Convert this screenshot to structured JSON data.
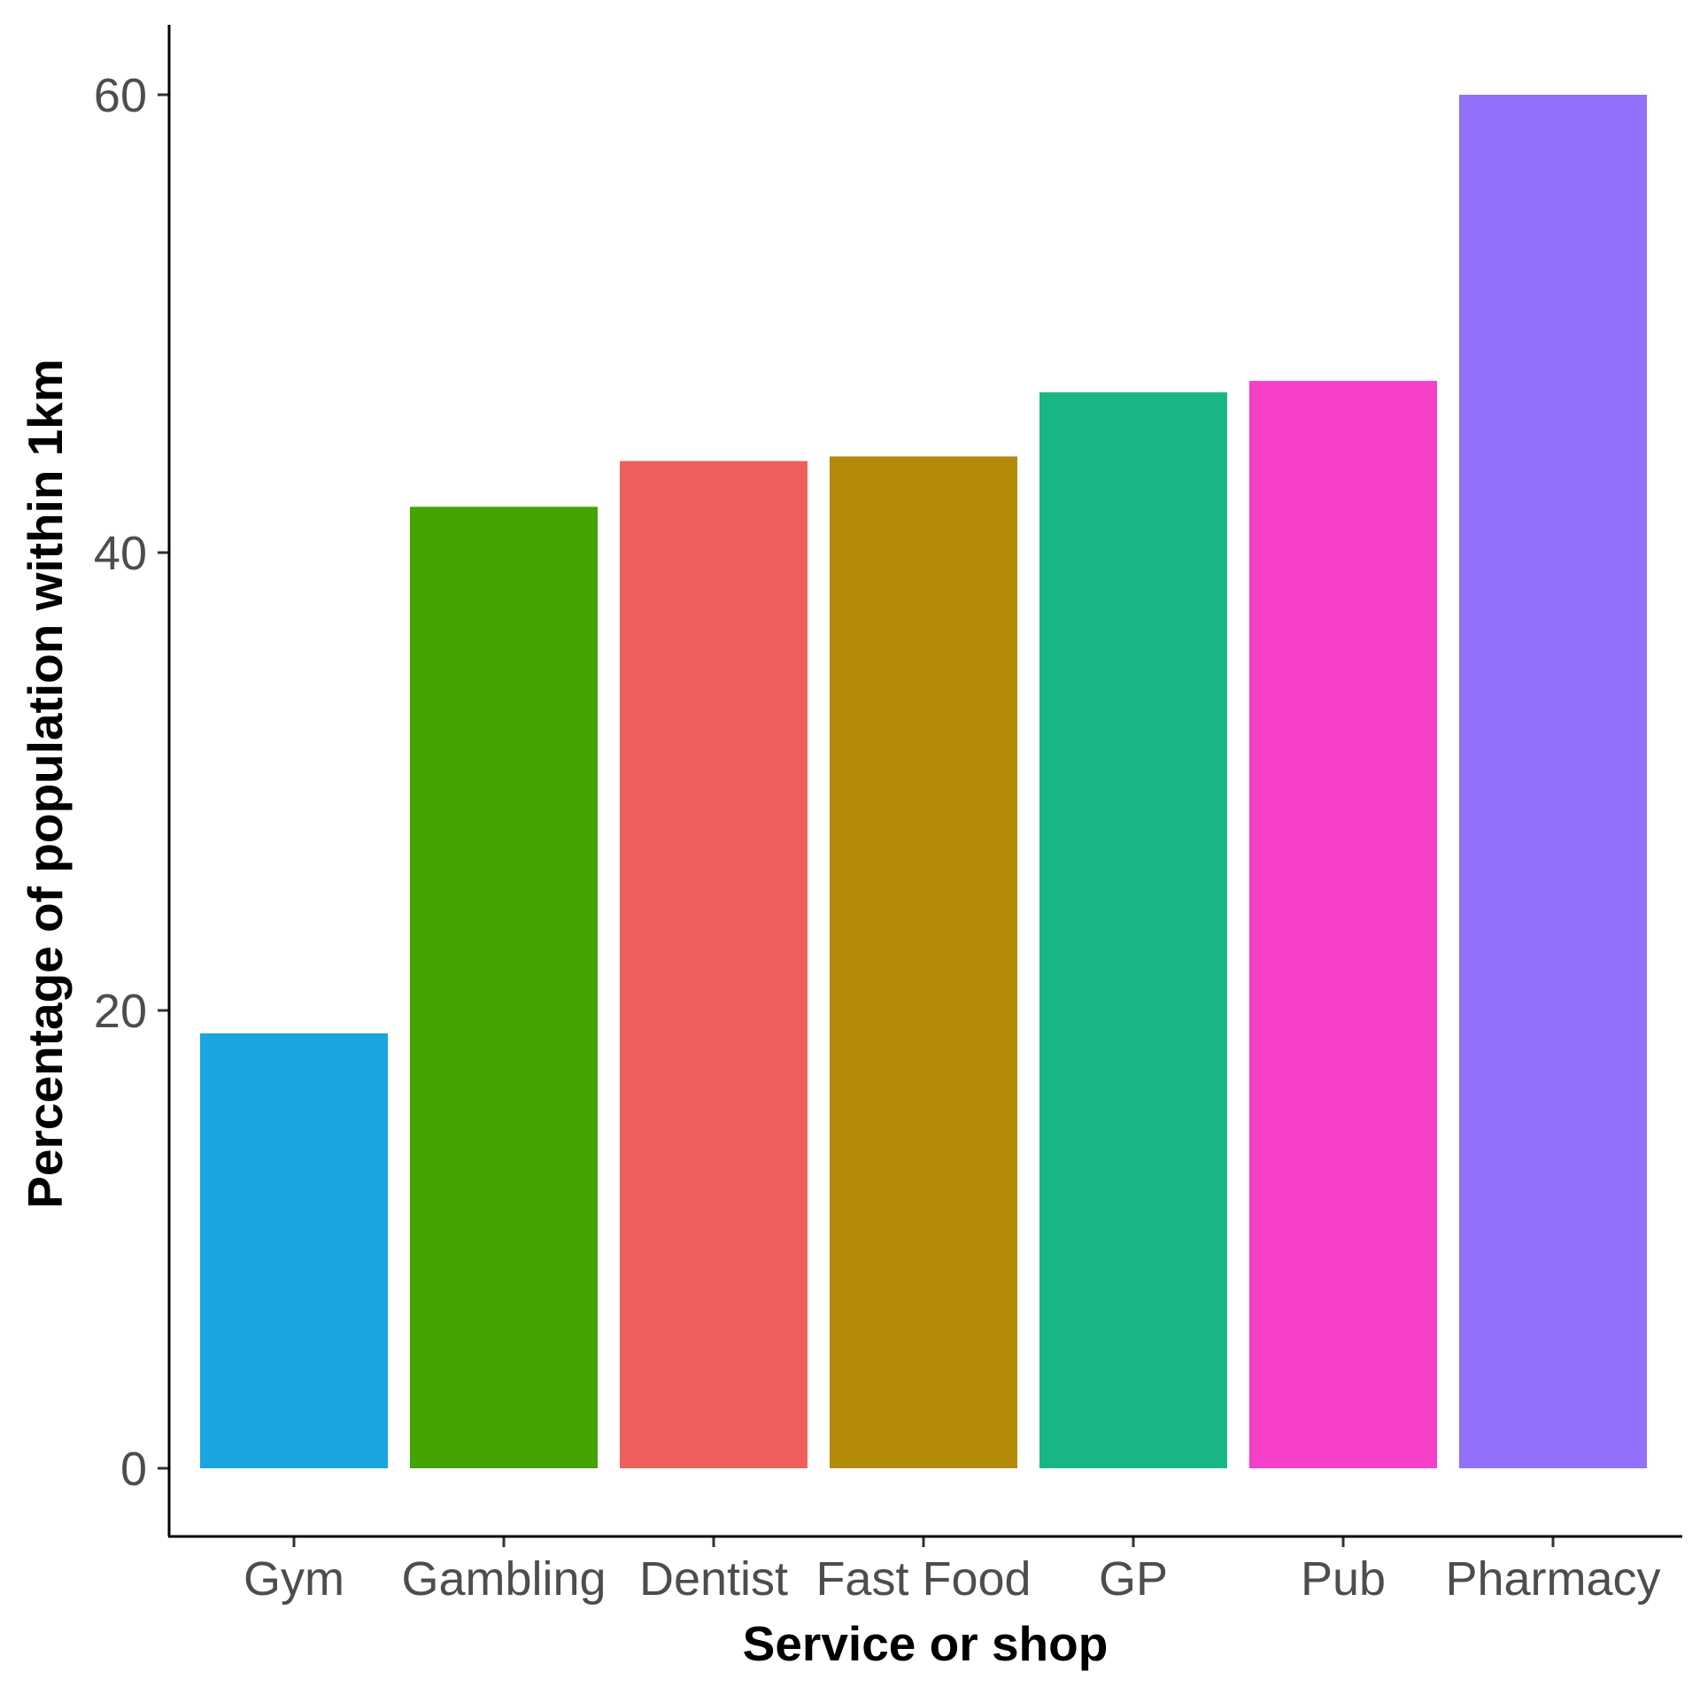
{
  "chart_data": {
    "type": "bar",
    "categories": [
      "Gym",
      "Gambling",
      "Dentist",
      "Fast Food",
      "GP",
      "Pub",
      "Pharmacy"
    ],
    "values": [
      19,
      42,
      44,
      44.2,
      47,
      47.5,
      60
    ],
    "colors": [
      "#18A5E0",
      "#45A300",
      "#F05F5B",
      "#B48A09",
      "#19B685",
      "#F53FC9",
      "#9370F9"
    ],
    "title": "",
    "xlabel": "Service or shop",
    "ylabel": "Percentage of population within 1km",
    "ylim": [
      0,
      60
    ],
    "yticks": [
      0,
      20,
      40,
      60
    ],
    "grid": false,
    "legend": "none"
  }
}
